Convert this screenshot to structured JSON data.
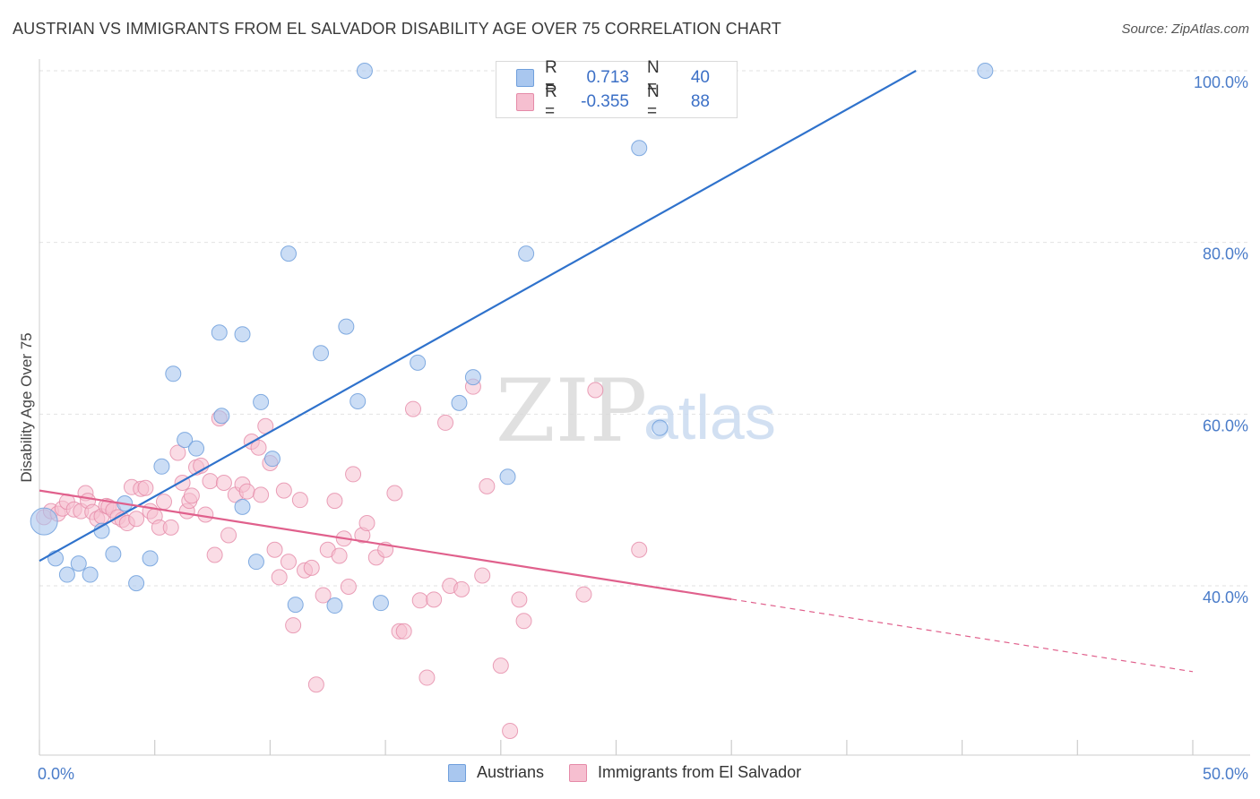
{
  "header": {
    "title": "AUSTRIAN VS IMMIGRANTS FROM EL SALVADOR DISABILITY AGE OVER 75 CORRELATION CHART",
    "source": "Source: ZipAtlas.com"
  },
  "watermark": {
    "zip": "ZIP",
    "atlas": "atlas"
  },
  "legend": {
    "rows": [
      {
        "r_label": "R =",
        "r_value": "0.713",
        "n_label": "N =",
        "n_value": "40",
        "color": "#a9c7ef",
        "border": "#6f9fdc"
      },
      {
        "r_label": "R =",
        "r_value": "-0.355",
        "n_label": "N =",
        "n_value": "88",
        "color": "#f6bfd0",
        "border": "#e58aa8"
      }
    ]
  },
  "bottom_legend": {
    "austrians": "Austrians",
    "salvador": "Immigrants from El Salvador"
  },
  "colors": {
    "blue": "#6f9fdc",
    "blue_fill": "#a9c7ef",
    "blue_line": "#2f72cc",
    "pink": "#e58aa8",
    "pink_fill": "#f6bfd0",
    "pink_line": "#e0608c",
    "axis_text": "#4a7cc9"
  },
  "chart_data": {
    "type": "scatter",
    "title": "AUSTRIAN VS IMMIGRANTS FROM EL SALVADOR DISABILITY AGE OVER 75 CORRELATION CHART",
    "xlabel": "",
    "ylabel": "Disability Age Over 75",
    "xlim": [
      0,
      50
    ],
    "ylim": [
      20,
      104
    ],
    "x_tick_labels": [
      "0.0%",
      "50.0%"
    ],
    "y_ticks": [
      40,
      60,
      80,
      100
    ],
    "y_tick_labels": [
      "40.0%",
      "60.0%",
      "80.0%",
      "100.0%"
    ],
    "grid": true,
    "series": [
      {
        "name": "Austrians",
        "points": [
          [
            0.2,
            47.5
          ],
          [
            0.7,
            43.2
          ],
          [
            1.2,
            41.3
          ],
          [
            1.7,
            42.6
          ],
          [
            2.2,
            41.3
          ],
          [
            2.7,
            46.4
          ],
          [
            3.2,
            43.7
          ],
          [
            3.7,
            49.6
          ],
          [
            4.2,
            40.3
          ],
          [
            4.8,
            43.2
          ],
          [
            5.3,
            53.9
          ],
          [
            5.8,
            64.7
          ],
          [
            6.3,
            57.0
          ],
          [
            6.8,
            56.0
          ],
          [
            7.8,
            69.5
          ],
          [
            7.9,
            59.8
          ],
          [
            8.8,
            69.3
          ],
          [
            8.8,
            49.2
          ],
          [
            9.4,
            42.8
          ],
          [
            9.6,
            61.4
          ],
          [
            10.1,
            54.8
          ],
          [
            10.8,
            78.7
          ],
          [
            11.1,
            37.8
          ],
          [
            12.2,
            67.1
          ],
          [
            12.8,
            37.7
          ],
          [
            13.3,
            70.2
          ],
          [
            13.8,
            61.5
          ],
          [
            14.1,
            100.0
          ],
          [
            14.8,
            38.0
          ],
          [
            16.4,
            66.0
          ],
          [
            18.2,
            61.3
          ],
          [
            18.8,
            64.3
          ],
          [
            20.3,
            52.7
          ],
          [
            21.1,
            78.7
          ],
          [
            22.3,
            100.0
          ],
          [
            23.8,
            100.0
          ],
          [
            26.0,
            91.0
          ],
          [
            26.9,
            58.4
          ],
          [
            29.8,
            100.0
          ],
          [
            41.0,
            100.0
          ]
        ]
      },
      {
        "name": "Immigrants from El Salvador",
        "points": [
          [
            0.2,
            48.0
          ],
          [
            0.5,
            48.7
          ],
          [
            0.8,
            48.4
          ],
          [
            1.0,
            49.0
          ],
          [
            1.2,
            49.8
          ],
          [
            1.5,
            48.9
          ],
          [
            1.8,
            48.7
          ],
          [
            2.0,
            50.8
          ],
          [
            2.1,
            49.9
          ],
          [
            2.3,
            48.6
          ],
          [
            2.5,
            47.8
          ],
          [
            2.7,
            48.1
          ],
          [
            2.9,
            49.3
          ],
          [
            3.0,
            49.2
          ],
          [
            3.2,
            48.8
          ],
          [
            3.4,
            48.0
          ],
          [
            3.6,
            47.7
          ],
          [
            3.8,
            47.3
          ],
          [
            4.0,
            51.5
          ],
          [
            4.2,
            47.8
          ],
          [
            4.4,
            51.3
          ],
          [
            4.6,
            51.4
          ],
          [
            4.8,
            48.7
          ],
          [
            5.0,
            48.1
          ],
          [
            5.2,
            46.8
          ],
          [
            5.4,
            49.8
          ],
          [
            5.7,
            46.8
          ],
          [
            6.0,
            55.5
          ],
          [
            6.2,
            52.0
          ],
          [
            6.4,
            48.7
          ],
          [
            6.5,
            49.9
          ],
          [
            6.6,
            50.5
          ],
          [
            6.8,
            53.8
          ],
          [
            7.0,
            54.0
          ],
          [
            7.2,
            48.3
          ],
          [
            7.4,
            52.2
          ],
          [
            7.6,
            43.6
          ],
          [
            7.8,
            59.5
          ],
          [
            8.0,
            52.0
          ],
          [
            8.2,
            45.9
          ],
          [
            8.5,
            50.6
          ],
          [
            8.8,
            51.8
          ],
          [
            9.0,
            51.0
          ],
          [
            9.2,
            56.8
          ],
          [
            9.5,
            56.1
          ],
          [
            9.6,
            50.6
          ],
          [
            9.8,
            58.6
          ],
          [
            10.0,
            54.3
          ],
          [
            10.2,
            44.2
          ],
          [
            10.4,
            41.0
          ],
          [
            10.6,
            51.1
          ],
          [
            10.8,
            42.8
          ],
          [
            11.0,
            35.4
          ],
          [
            11.3,
            50.0
          ],
          [
            11.5,
            41.8
          ],
          [
            11.8,
            42.1
          ],
          [
            12.0,
            28.5
          ],
          [
            12.3,
            38.9
          ],
          [
            12.5,
            44.2
          ],
          [
            12.8,
            49.9
          ],
          [
            13.0,
            43.5
          ],
          [
            13.2,
            45.5
          ],
          [
            13.4,
            39.9
          ],
          [
            13.6,
            53.0
          ],
          [
            14.0,
            45.9
          ],
          [
            14.2,
            47.3
          ],
          [
            14.6,
            43.3
          ],
          [
            15.0,
            44.2
          ],
          [
            15.4,
            50.8
          ],
          [
            15.6,
            34.7
          ],
          [
            15.8,
            34.7
          ],
          [
            16.2,
            60.6
          ],
          [
            16.5,
            38.3
          ],
          [
            16.8,
            29.3
          ],
          [
            17.1,
            38.4
          ],
          [
            17.6,
            59.0
          ],
          [
            17.8,
            40.0
          ],
          [
            18.3,
            39.6
          ],
          [
            18.8,
            63.2
          ],
          [
            19.2,
            41.2
          ],
          [
            19.4,
            51.6
          ],
          [
            20.0,
            30.7
          ],
          [
            20.4,
            23.1
          ],
          [
            20.8,
            38.4
          ],
          [
            21.0,
            35.9
          ],
          [
            23.6,
            39.0
          ],
          [
            24.1,
            62.8
          ],
          [
            26.0,
            44.2
          ]
        ]
      }
    ],
    "trend_lines": [
      {
        "series": "Austrians",
        "x": [
          0,
          38
        ],
        "y": [
          42.9,
          100.0
        ]
      },
      {
        "series": "Immigrants from El Salvador",
        "x_solid": [
          0,
          30
        ],
        "x_dashed": [
          30,
          50
        ],
        "x": [
          0,
          50
        ],
        "y": [
          51.1,
          30.0
        ]
      }
    ]
  }
}
